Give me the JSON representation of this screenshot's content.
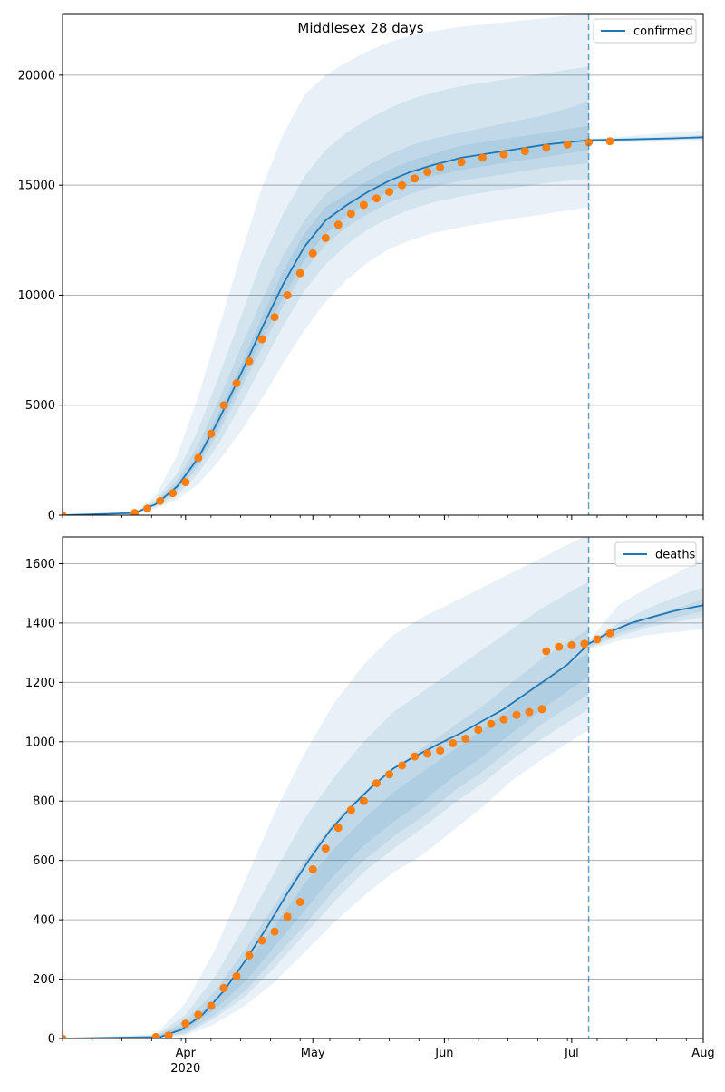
{
  "figure": {
    "title": "Middlesex 28 days"
  },
  "chart_data": [
    {
      "type": "line",
      "title": "Middlesex 28 days",
      "xlabel": "",
      "ylabel": "",
      "xlim": [
        "2020-03-03",
        "2020-08-01"
      ],
      "ylim": [
        0,
        22800
      ],
      "yticks": [
        0,
        5000,
        10000,
        15000,
        20000
      ],
      "xtick_labels": [
        {
          "date": "2020-04-01",
          "label": "Apr",
          "sublabel": "2020"
        },
        {
          "date": "2020-05-01",
          "label": "May"
        },
        {
          "date": "2020-06-01",
          "label": "Jun"
        },
        {
          "date": "2020-07-01",
          "label": "Jul"
        },
        {
          "date": "2020-08-01",
          "label": "Aug"
        }
      ],
      "grid": "y",
      "legend": {
        "position": "top-right",
        "entries": [
          "confirmed"
        ]
      },
      "forecast_split_date": "2020-07-05",
      "series": [
        {
          "name": "confirmed",
          "role": "model median",
          "color": "#1f77b4",
          "x": [
            "2020-03-03",
            "2020-03-20",
            "2020-03-25",
            "2020-03-30",
            "2020-04-04",
            "2020-04-09",
            "2020-04-14",
            "2020-04-19",
            "2020-04-24",
            "2020-04-29",
            "2020-05-04",
            "2020-05-09",
            "2020-05-14",
            "2020-05-19",
            "2020-05-24",
            "2020-05-29",
            "2020-06-05",
            "2020-06-15",
            "2020-06-25",
            "2020-07-05",
            "2020-07-15",
            "2020-07-25",
            "2020-08-01"
          ],
          "values": [
            0,
            100,
            500,
            1300,
            2600,
            4400,
            6400,
            8500,
            10500,
            12200,
            13400,
            14100,
            14700,
            15200,
            15600,
            15900,
            16250,
            16550,
            16850,
            17050,
            17080,
            17130,
            17180
          ]
        },
        {
          "name": "",
          "role": "observed",
          "color": "#ff7f0e",
          "x": [
            "2020-03-03",
            "2020-03-20",
            "2020-03-23",
            "2020-03-26",
            "2020-03-29",
            "2020-04-01",
            "2020-04-04",
            "2020-04-07",
            "2020-04-10",
            "2020-04-13",
            "2020-04-16",
            "2020-04-19",
            "2020-04-22",
            "2020-04-25",
            "2020-04-28",
            "2020-05-01",
            "2020-05-04",
            "2020-05-07",
            "2020-05-10",
            "2020-05-13",
            "2020-05-16",
            "2020-05-19",
            "2020-05-22",
            "2020-05-25",
            "2020-05-28",
            "2020-05-31",
            "2020-06-05",
            "2020-06-10",
            "2020-06-15",
            "2020-06-20",
            "2020-06-25",
            "2020-06-30",
            "2020-07-05",
            "2020-07-10"
          ],
          "values": [
            0,
            100,
            300,
            650,
            1000,
            1500,
            2600,
            3700,
            5000,
            6000,
            7000,
            8000,
            9000,
            10000,
            11000,
            11900,
            12600,
            13200,
            13700,
            14100,
            14400,
            14700,
            15000,
            15300,
            15600,
            15800,
            16050,
            16250,
            16400,
            16550,
            16700,
            16850,
            16950,
            17000
          ]
        }
      ],
      "bands": [
        {
          "x": [
            "2020-03-03",
            "2020-03-20",
            "2020-03-25",
            "2020-03-30",
            "2020-04-04",
            "2020-04-09",
            "2020-04-14",
            "2020-04-19",
            "2020-04-24",
            "2020-04-29",
            "2020-05-04",
            "2020-05-09",
            "2020-05-14",
            "2020-05-19",
            "2020-05-24",
            "2020-05-29",
            "2020-06-05",
            "2020-06-15",
            "2020-06-25",
            "2020-07-05"
          ],
          "lower": [
            0,
            60,
            300,
            700,
            1400,
            2500,
            3800,
            5300,
            6900,
            8400,
            9700,
            10700,
            11500,
            12100,
            12500,
            12800,
            13100,
            13400,
            13700,
            14000
          ],
          "upper": [
            0,
            150,
            900,
            2700,
            5400,
            8600,
            11800,
            14900,
            17300,
            19100,
            20000,
            20600,
            21100,
            21500,
            21800,
            22000,
            22200,
            22400,
            22600,
            22800
          ]
        },
        {
          "x": [
            "2020-03-03",
            "2020-03-20",
            "2020-03-25",
            "2020-03-30",
            "2020-04-04",
            "2020-04-09",
            "2020-04-14",
            "2020-04-19",
            "2020-04-24",
            "2020-04-29",
            "2020-05-04",
            "2020-05-09",
            "2020-05-14",
            "2020-05-19",
            "2020-05-24",
            "2020-05-29",
            "2020-06-05",
            "2020-06-15",
            "2020-06-25",
            "2020-07-05"
          ],
          "lower": [
            0,
            80,
            400,
            900,
            1900,
            3300,
            5000,
            6800,
            8600,
            10200,
            11400,
            12300,
            13000,
            13500,
            13900,
            14200,
            14500,
            14800,
            15100,
            15300
          ],
          "upper": [
            0,
            120,
            700,
            1900,
            3900,
            6400,
            9000,
            11600,
            13700,
            15400,
            16600,
            17400,
            18000,
            18500,
            18900,
            19200,
            19500,
            19800,
            20100,
            20400
          ]
        },
        {
          "x": [
            "2020-03-03",
            "2020-03-20",
            "2020-03-25",
            "2020-03-30",
            "2020-04-04",
            "2020-04-09",
            "2020-04-14",
            "2020-04-19",
            "2020-04-24",
            "2020-04-29",
            "2020-05-04",
            "2020-05-09",
            "2020-05-14",
            "2020-05-19",
            "2020-05-24",
            "2020-05-29",
            "2020-06-05",
            "2020-06-15",
            "2020-06-25",
            "2020-07-05"
          ],
          "lower": [
            0,
            90,
            450,
            1100,
            2200,
            3800,
            5700,
            7600,
            9500,
            11100,
            12300,
            13100,
            13700,
            14200,
            14600,
            14900,
            15200,
            15500,
            15800,
            16000
          ],
          "upper": [
            0,
            110,
            600,
            1600,
            3200,
            5300,
            7600,
            9800,
            11800,
            13400,
            14600,
            15300,
            15900,
            16400,
            16800,
            17100,
            17400,
            17800,
            18200,
            18800
          ]
        },
        {
          "x": [
            "2020-03-03",
            "2020-03-20",
            "2020-03-25",
            "2020-03-30",
            "2020-04-04",
            "2020-04-09",
            "2020-04-14",
            "2020-04-19",
            "2020-04-24",
            "2020-04-29",
            "2020-05-04",
            "2020-05-09",
            "2020-05-14",
            "2020-05-19",
            "2020-05-24",
            "2020-05-29",
            "2020-06-05",
            "2020-06-15",
            "2020-06-25",
            "2020-07-05"
          ],
          "lower": [
            0,
            95,
            480,
            1200,
            2400,
            4100,
            6000,
            8000,
            9900,
            11600,
            12800,
            13600,
            14200,
            14700,
            15100,
            15400,
            15700,
            16000,
            16300,
            16600
          ],
          "upper": [
            0,
            105,
            540,
            1400,
            2800,
            4700,
            6800,
            9000,
            11100,
            12800,
            14000,
            14600,
            15200,
            15700,
            16100,
            16400,
            16800,
            17100,
            17400,
            17700
          ]
        },
        {
          "x": [
            "2020-07-05",
            "2020-07-15",
            "2020-07-25",
            "2020-08-01"
          ],
          "lower": [
            16950,
            16950,
            16980,
            17000
          ],
          "upper": [
            17100,
            17250,
            17400,
            17500
          ]
        },
        {
          "x": [
            "2020-07-05",
            "2020-07-15",
            "2020-07-25",
            "2020-08-01"
          ],
          "lower": [
            17000,
            17020,
            17060,
            17100
          ],
          "upper": [
            17080,
            17150,
            17220,
            17280
          ]
        }
      ]
    },
    {
      "type": "line",
      "title": "",
      "xlabel": "",
      "ylabel": "",
      "xlim": [
        "2020-03-03",
        "2020-08-01"
      ],
      "ylim": [
        0,
        1690
      ],
      "yticks": [
        0,
        200,
        400,
        600,
        800,
        1000,
        1200,
        1400,
        1600
      ],
      "xtick_labels": [
        {
          "date": "2020-04-01",
          "label": "Apr",
          "sublabel": "2020"
        },
        {
          "date": "2020-05-01",
          "label": "May"
        },
        {
          "date": "2020-06-01",
          "label": "Jun"
        },
        {
          "date": "2020-07-01",
          "label": "Jul"
        },
        {
          "date": "2020-08-01",
          "label": "Aug"
        }
      ],
      "grid": "y",
      "legend": {
        "position": "top-right",
        "entries": [
          "deaths"
        ]
      },
      "forecast_split_date": "2020-07-05",
      "series": [
        {
          "name": "deaths",
          "role": "model median",
          "color": "#1f77b4",
          "x": [
            "2020-03-03",
            "2020-03-26",
            "2020-03-31",
            "2020-04-05",
            "2020-04-10",
            "2020-04-15",
            "2020-04-20",
            "2020-04-25",
            "2020-04-30",
            "2020-05-05",
            "2020-05-10",
            "2020-05-15",
            "2020-05-20",
            "2020-05-25",
            "2020-05-31",
            "2020-06-05",
            "2020-06-10",
            "2020-06-15",
            "2020-06-20",
            "2020-06-25",
            "2020-06-30",
            "2020-07-05",
            "2020-07-10",
            "2020-07-15",
            "2020-07-20",
            "2020-07-25",
            "2020-08-01"
          ],
          "values": [
            0,
            5,
            30,
            80,
            160,
            260,
            370,
            490,
            600,
            700,
            780,
            850,
            910,
            950,
            995,
            1030,
            1070,
            1110,
            1160,
            1210,
            1260,
            1330,
            1370,
            1400,
            1420,
            1440,
            1460
          ]
        },
        {
          "name": "",
          "role": "observed",
          "color": "#ff7f0e",
          "x": [
            "2020-03-03",
            "2020-03-25",
            "2020-03-28",
            "2020-04-01",
            "2020-04-04",
            "2020-04-07",
            "2020-04-10",
            "2020-04-13",
            "2020-04-16",
            "2020-04-19",
            "2020-04-22",
            "2020-04-25",
            "2020-04-28",
            "2020-05-01",
            "2020-05-04",
            "2020-05-07",
            "2020-05-10",
            "2020-05-13",
            "2020-05-16",
            "2020-05-19",
            "2020-05-22",
            "2020-05-25",
            "2020-05-28",
            "2020-05-31",
            "2020-06-03",
            "2020-06-06",
            "2020-06-09",
            "2020-06-12",
            "2020-06-15",
            "2020-06-18",
            "2020-06-21",
            "2020-06-24",
            "2020-06-25",
            "2020-06-28",
            "2020-07-01",
            "2020-07-04",
            "2020-07-07",
            "2020-07-10"
          ],
          "values": [
            0,
            5,
            10,
            50,
            80,
            110,
            170,
            210,
            280,
            330,
            360,
            410,
            460,
            570,
            640,
            710,
            770,
            800,
            860,
            890,
            920,
            950,
            960,
            970,
            995,
            1010,
            1040,
            1060,
            1075,
            1090,
            1100,
            1110,
            1305,
            1320,
            1325,
            1330,
            1345,
            1365
          ]
        }
      ],
      "bands": [
        {
          "x": [
            "2020-03-03",
            "2020-03-25",
            "2020-04-01",
            "2020-04-08",
            "2020-04-15",
            "2020-04-22",
            "2020-04-29",
            "2020-05-06",
            "2020-05-13",
            "2020-05-20",
            "2020-05-27",
            "2020-06-03",
            "2020-06-10",
            "2020-06-17",
            "2020-06-24",
            "2020-07-05"
          ],
          "lower": [
            0,
            0,
            10,
            50,
            110,
            190,
            290,
            390,
            480,
            560,
            620,
            700,
            780,
            870,
            940,
            1040
          ],
          "upper": [
            0,
            15,
            120,
            300,
            530,
            760,
            960,
            1130,
            1260,
            1360,
            1420,
            1470,
            1520,
            1570,
            1620,
            1700
          ]
        },
        {
          "x": [
            "2020-03-03",
            "2020-03-25",
            "2020-04-01",
            "2020-04-08",
            "2020-04-15",
            "2020-04-22",
            "2020-04-29",
            "2020-05-06",
            "2020-05-13",
            "2020-05-20",
            "2020-05-27",
            "2020-06-03",
            "2020-06-10",
            "2020-06-17",
            "2020-06-24",
            "2020-07-05"
          ],
          "lower": [
            0,
            2,
            15,
            70,
            140,
            240,
            350,
            460,
            560,
            640,
            710,
            790,
            860,
            940,
            1010,
            1110
          ],
          "upper": [
            0,
            10,
            80,
            210,
            380,
            560,
            740,
            880,
            1000,
            1100,
            1170,
            1240,
            1310,
            1380,
            1450,
            1540
          ]
        },
        {
          "x": [
            "2020-03-03",
            "2020-03-25",
            "2020-04-01",
            "2020-04-08",
            "2020-04-15",
            "2020-04-22",
            "2020-04-29",
            "2020-05-06",
            "2020-05-13",
            "2020-05-20",
            "2020-05-27",
            "2020-06-03",
            "2020-06-10",
            "2020-06-17",
            "2020-06-24",
            "2020-07-05"
          ],
          "lower": [
            0,
            3,
            20,
            80,
            160,
            270,
            380,
            500,
            600,
            680,
            750,
            830,
            900,
            980,
            1060,
            1160
          ],
          "upper": [
            0,
            8,
            60,
            160,
            300,
            450,
            600,
            730,
            830,
            910,
            980,
            1050,
            1120,
            1200,
            1280,
            1380
          ]
        },
        {
          "x": [
            "2020-03-03",
            "2020-03-25",
            "2020-04-01",
            "2020-04-08",
            "2020-04-15",
            "2020-04-22",
            "2020-04-29",
            "2020-05-06",
            "2020-05-13",
            "2020-05-20",
            "2020-05-27",
            "2020-06-03",
            "2020-06-10",
            "2020-06-17",
            "2020-06-24",
            "2020-07-05"
          ],
          "lower": [
            0,
            4,
            28,
            100,
            190,
            310,
            430,
            550,
            650,
            730,
            800,
            880,
            950,
            1030,
            1110,
            1220
          ],
          "upper": [
            0,
            7,
            45,
            130,
            250,
            380,
            520,
            640,
            740,
            830,
            900,
            970,
            1040,
            1120,
            1200,
            1300
          ]
        },
        {
          "x": [
            "2020-07-05",
            "2020-07-12",
            "2020-07-19",
            "2020-07-26",
            "2020-08-01"
          ],
          "lower": [
            1310,
            1340,
            1360,
            1370,
            1380
          ],
          "upper": [
            1340,
            1460,
            1520,
            1570,
            1620
          ]
        },
        {
          "x": [
            "2020-07-05",
            "2020-07-12",
            "2020-07-19",
            "2020-07-26",
            "2020-08-01"
          ],
          "lower": [
            1315,
            1355,
            1385,
            1405,
            1420
          ],
          "upper": [
            1335,
            1400,
            1450,
            1490,
            1520
          ]
        },
        {
          "x": [
            "2020-07-05",
            "2020-07-12",
            "2020-07-19",
            "2020-07-26",
            "2020-08-01"
          ],
          "lower": [
            1320,
            1365,
            1395,
            1420,
            1440
          ],
          "upper": [
            1330,
            1385,
            1420,
            1450,
            1480
          ]
        }
      ]
    }
  ]
}
